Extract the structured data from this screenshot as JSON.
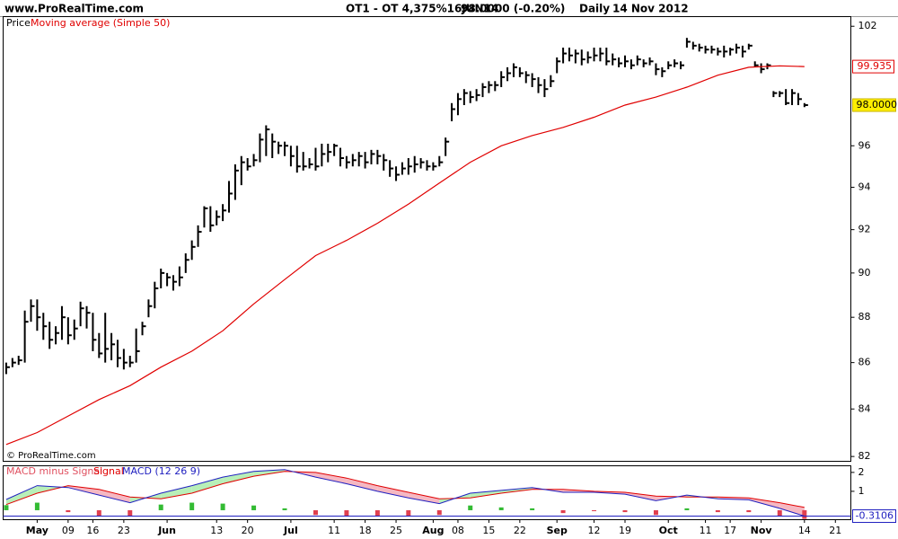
{
  "header": {
    "site": "www.ProRealTime.com",
    "instrument": "OT1 - OT 4,375%16JUN14",
    "price": "98.0000 (-0.20%)",
    "period": "Daily",
    "date": "14 Nov 2012",
    "copyright": "© ProRealTime.com"
  },
  "chart_data": [
    {
      "type": "ohlc",
      "log_scale": true,
      "grid": false,
      "xlim": [
        -0.5,
        136.5
      ],
      "ylim": [
        81.8,
        102.5
      ],
      "yticks": [
        82,
        84,
        86,
        88,
        90,
        92,
        94,
        96,
        102
      ],
      "last_price": {
        "value": 98,
        "label": "98.0000"
      },
      "series": [
        {
          "name": "Price",
          "color": "#000000",
          "high": [
            86.0,
            86.2,
            86.3,
            88.3,
            88.8,
            88.8,
            88.2,
            87.8,
            87.6,
            88.5,
            88.0,
            87.9,
            88.7,
            88.5,
            88.2,
            87.3,
            88.2,
            87.3,
            87.0,
            86.6,
            86.3,
            87.5,
            87.8,
            88.8,
            89.6,
            90.2,
            90.0,
            89.9,
            90.3,
            90.9,
            91.5,
            92.2,
            93.1,
            93.1,
            92.9,
            93.2,
            94.3,
            95.1,
            95.5,
            95.4,
            95.6,
            96.6,
            97.0,
            96.6,
            96.2,
            96.2,
            96.0,
            96.0,
            95.7,
            95.4,
            95.9,
            96.1,
            96.1,
            96.1,
            95.9,
            95.5,
            95.6,
            95.7,
            95.7,
            95.8,
            95.8,
            95.6,
            95.3,
            95.0,
            95.2,
            95.4,
            95.5,
            95.4,
            95.3,
            95.2,
            95.5,
            96.4,
            98.1,
            98.6,
            98.8,
            98.7,
            98.8,
            99.1,
            99.2,
            99.2,
            99.7,
            99.9,
            100.1,
            99.9,
            99.7,
            99.6,
            99.4,
            99.3,
            99.5,
            100.4,
            100.9,
            100.9,
            100.8,
            100.8,
            100.7,
            100.9,
            100.9,
            100.9,
            100.6,
            100.4,
            100.5,
            100.3,
            100.5,
            100.3,
            100.4,
            100.1,
            99.9,
            100.2,
            100.3,
            100.2,
            101.4,
            101.2,
            101.1,
            101.0,
            101.0,
            100.9,
            101.0,
            100.9,
            101.1,
            101.0,
            101.1,
            100.2,
            100.1,
            100.1,
            98.7,
            98.7,
            98.8,
            98.8,
            98.6,
            98.1
          ],
          "low": [
            85.5,
            85.8,
            85.9,
            86.0,
            87.8,
            87.4,
            87.0,
            86.6,
            86.8,
            87.0,
            86.8,
            87.0,
            87.6,
            87.5,
            86.5,
            86.2,
            86.0,
            86.1,
            85.8,
            85.7,
            85.8,
            86.0,
            87.2,
            88.0,
            88.4,
            89.3,
            89.4,
            89.2,
            89.4,
            90.0,
            90.6,
            91.2,
            92.1,
            91.9,
            92.2,
            92.4,
            92.8,
            93.4,
            94.1,
            94.8,
            95.0,
            95.2,
            95.5,
            95.4,
            95.6,
            95.5,
            95.0,
            94.7,
            94.8,
            94.9,
            94.8,
            95.0,
            95.2,
            95.5,
            95.0,
            94.9,
            95.0,
            95.0,
            94.9,
            95.1,
            95.1,
            94.8,
            94.5,
            94.3,
            94.6,
            94.6,
            94.7,
            94.9,
            94.8,
            94.8,
            95.0,
            95.5,
            97.2,
            97.5,
            98.0,
            98.1,
            98.2,
            98.4,
            98.6,
            98.7,
            98.9,
            99.2,
            99.4,
            99.4,
            99.1,
            98.9,
            98.6,
            98.4,
            98.9,
            99.6,
            100.1,
            100.2,
            100.1,
            100.0,
            100.1,
            100.2,
            100.2,
            100.0,
            100.0,
            99.9,
            99.9,
            99.8,
            100.0,
            99.9,
            100.0,
            99.5,
            99.4,
            99.8,
            99.9,
            99.8,
            100.9,
            100.8,
            100.7,
            100.6,
            100.6,
            100.5,
            100.4,
            100.5,
            100.6,
            100.4,
            100.8,
            99.9,
            99.6,
            99.8,
            98.4,
            98.4,
            98.0,
            98.0,
            98.0,
            97.9
          ],
          "close": [
            85.8,
            86.0,
            86.1,
            87.8,
            88.5,
            88.0,
            87.6,
            87.0,
            87.3,
            88.0,
            87.2,
            87.5,
            88.4,
            88.2,
            87.0,
            86.4,
            86.6,
            86.8,
            86.2,
            86.0,
            86.0,
            86.5,
            87.6,
            88.5,
            89.3,
            90.0,
            89.8,
            89.6,
            89.8,
            90.6,
            91.2,
            91.9,
            93.0,
            92.2,
            92.6,
            92.9,
            93.7,
            94.8,
            95.2,
            95.0,
            95.3,
            96.3,
            96.8,
            96.2,
            96.0,
            96.0,
            95.5,
            95.0,
            95.0,
            95.1,
            95.0,
            95.6,
            95.7,
            96.0,
            95.4,
            95.2,
            95.3,
            95.5,
            95.2,
            95.6,
            95.5,
            95.3,
            94.9,
            94.6,
            94.9,
            95.0,
            95.1,
            95.2,
            95.0,
            95.0,
            95.2,
            96.2,
            97.8,
            98.3,
            98.6,
            98.4,
            98.5,
            98.9,
            99.0,
            99.0,
            99.4,
            99.6,
            99.9,
            99.6,
            99.5,
            99.3,
            99.0,
            98.8,
            99.2,
            100.2,
            100.6,
            100.5,
            100.6,
            100.3,
            100.4,
            100.5,
            100.6,
            100.2,
            100.3,
            100.1,
            100.2,
            100.0,
            100.3,
            100.1,
            100.2,
            99.8,
            99.7,
            100.0,
            100.1,
            100.0,
            101.2,
            101.0,
            100.9,
            100.8,
            100.8,
            100.7,
            100.7,
            100.8,
            100.9,
            100.7,
            101.0,
            100.0,
            99.8,
            100.0,
            98.6,
            98.6,
            98.1,
            98.6,
            98.3,
            98.0
          ]
        },
        {
          "name": "Moving average (Simple 50)",
          "color": "#e00000",
          "x": [
            0,
            5,
            10,
            15,
            20,
            25,
            30,
            35,
            40,
            45,
            50,
            55,
            60,
            65,
            70,
            75,
            80,
            85,
            90,
            95,
            100,
            105,
            110,
            115,
            120,
            125,
            129
          ],
          "values": [
            82.5,
            83.0,
            83.7,
            84.4,
            85.0,
            85.8,
            86.5,
            87.4,
            88.6,
            89.7,
            90.8,
            91.5,
            92.3,
            93.2,
            94.2,
            95.2,
            96.0,
            96.5,
            96.9,
            97.4,
            98.0,
            98.4,
            98.9,
            99.5,
            99.9,
            99.97,
            99.935
          ]
        }
      ]
    },
    {
      "type": "macd",
      "xlim": [
        -0.5,
        136.5
      ],
      "ylim": [
        -0.5,
        2.35
      ],
      "yticks": [
        1,
        2
      ],
      "xticks": [
        {
          "value": 5,
          "label": "May"
        },
        {
          "value": 10,
          "label": "09"
        },
        {
          "value": 14,
          "label": "16"
        },
        {
          "value": 19,
          "label": "23"
        },
        {
          "value": 26,
          "label": "Jun"
        },
        {
          "value": 34,
          "label": "13"
        },
        {
          "value": 39,
          "label": "20"
        },
        {
          "value": 46,
          "label": "Jul"
        },
        {
          "value": 53,
          "label": "11"
        },
        {
          "value": 58,
          "label": "18"
        },
        {
          "value": 63,
          "label": "25"
        },
        {
          "value": 69,
          "label": "Aug"
        },
        {
          "value": 73,
          "label": "08"
        },
        {
          "value": 78,
          "label": "15"
        },
        {
          "value": 83,
          "label": "22"
        },
        {
          "value": 89,
          "label": "Sep"
        },
        {
          "value": 95,
          "label": "12"
        },
        {
          "value": 100,
          "label": "19"
        },
        {
          "value": 107,
          "label": "Oct"
        },
        {
          "value": 113,
          "label": "11"
        },
        {
          "value": 117,
          "label": "17"
        },
        {
          "value": 122,
          "label": "Nov"
        },
        {
          "value": 129,
          "label": "14"
        },
        {
          "value": 134,
          "label": "21"
        }
      ],
      "x": [
        0,
        5,
        10,
        15,
        20,
        25,
        30,
        35,
        40,
        45,
        50,
        55,
        60,
        65,
        70,
        75,
        80,
        85,
        90,
        95,
        100,
        105,
        110,
        115,
        120,
        125,
        129
      ],
      "series": [
        {
          "name": "MACD minus Signal",
          "color": "#e05060",
          "up_color": "#33bb33",
          "down_color": "#e04050",
          "values": [
            0.27,
            0.4,
            -0.1,
            -0.3,
            -0.3,
            0.3,
            0.4,
            0.35,
            0.25,
            0.1,
            -0.25,
            -0.3,
            -0.3,
            -0.3,
            -0.25,
            0.25,
            0.15,
            0.1,
            -0.15,
            -0.05,
            -0.1,
            -0.25,
            0.1,
            -0.1,
            -0.1,
            -0.3,
            -0.46
          ]
        },
        {
          "name": "Signal",
          "color": "#e00000",
          "values": [
            0.3,
            0.9,
            1.3,
            1.1,
            0.7,
            0.6,
            0.9,
            1.4,
            1.8,
            2.05,
            2.0,
            1.7,
            1.3,
            0.95,
            0.6,
            0.65,
            0.9,
            1.1,
            1.1,
            1.0,
            0.95,
            0.75,
            0.7,
            0.7,
            0.65,
            0.4,
            0.15
          ]
        },
        {
          "name": "MACD (12 26 9)",
          "color": "#2020c0",
          "values": [
            0.57,
            1.3,
            1.2,
            0.8,
            0.4,
            0.9,
            1.3,
            1.75,
            2.05,
            2.15,
            1.75,
            1.4,
            1.0,
            0.65,
            0.35,
            0.9,
            1.05,
            1.2,
            0.95,
            0.95,
            0.85,
            0.5,
            0.8,
            0.6,
            0.55,
            0.1,
            -0.3106
          ]
        }
      ]
    }
  ]
}
